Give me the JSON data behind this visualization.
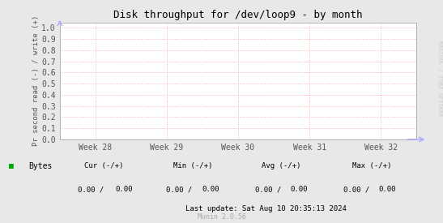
{
  "title": "Disk throughput for /dev/loop9 - by month",
  "ylabel": "Pr second read (-) / write (+)",
  "bg_color": "#e8e8e8",
  "plot_bg_color": "#ffffff",
  "grid_color": "#ffaaaa",
  "border_color": "#aaaaaa",
  "yticks": [
    0.0,
    0.1,
    0.2,
    0.3,
    0.4,
    0.5,
    0.6,
    0.7,
    0.8,
    0.9,
    1.0
  ],
  "ylim": [
    0.0,
    1.05
  ],
  "xtick_labels": [
    "Week 28",
    "Week 29",
    "Week 30",
    "Week 31",
    "Week 32"
  ],
  "legend_label": "Bytes",
  "legend_color": "#00aa00",
  "cur_label": "Cur (-/+)",
  "min_label": "Min (-/+)",
  "avg_label": "Avg (-/+)",
  "max_label": "Max (-/+)",
  "cur_val": "0.00 /    0.00",
  "min_val": "0.00 /    0.00",
  "avg_val": "0.00 /    0.00",
  "max_val": "0.00 /    0.00",
  "last_update": "Last update: Sat Aug 10 20:35:13 2024",
  "munin_version": "Munin 2.0.56",
  "watermark": "RRDTOOL / TOBI OETIKER",
  "arrow_color": "#aaaaff",
  "line_color": "#0000dd",
  "text_color": "#555555",
  "stats_color": "#333333"
}
